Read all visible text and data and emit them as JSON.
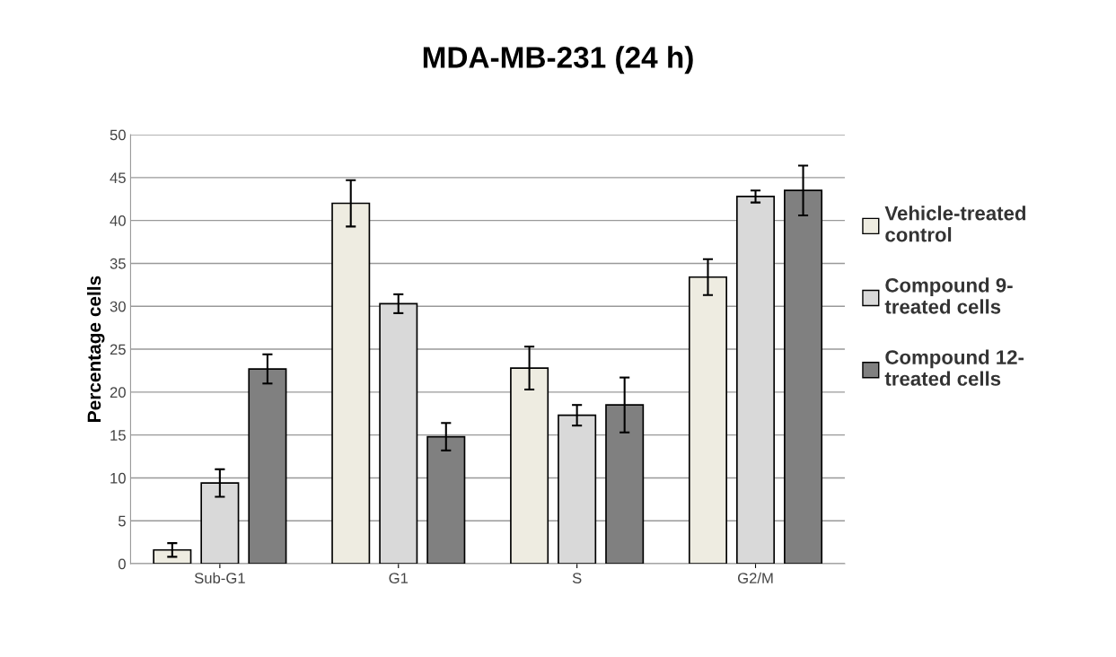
{
  "chart_data": {
    "type": "bar",
    "title": "MDA-MB-231 (24 h)",
    "ylabel": "Percentage cells",
    "categories": [
      "Sub-G1",
      "G1",
      "S",
      "G2/M"
    ],
    "series": [
      {
        "name": "Vehicle-treated\ncontrol",
        "color": "#eeece1",
        "values": [
          1.6,
          42.0,
          22.8,
          33.4
        ],
        "errors": [
          0.8,
          2.7,
          2.5,
          2.1
        ]
      },
      {
        "name": "Compound 9-\ntreated cells",
        "color": "#d9d9d9",
        "values": [
          9.4,
          30.3,
          17.3,
          42.8
        ],
        "errors": [
          1.6,
          1.1,
          1.2,
          0.7
        ]
      },
      {
        "name": "Compound 12-\ntreated cells",
        "color": "#808080",
        "values": [
          22.7,
          14.8,
          18.5,
          43.5
        ],
        "errors": [
          1.7,
          1.6,
          3.2,
          2.9
        ]
      }
    ],
    "ylim": [
      0,
      50
    ],
    "yticks": [
      0,
      5,
      10,
      15,
      20,
      25,
      30,
      35,
      40,
      45,
      50
    ],
    "grid": "y",
    "legend": "right"
  }
}
